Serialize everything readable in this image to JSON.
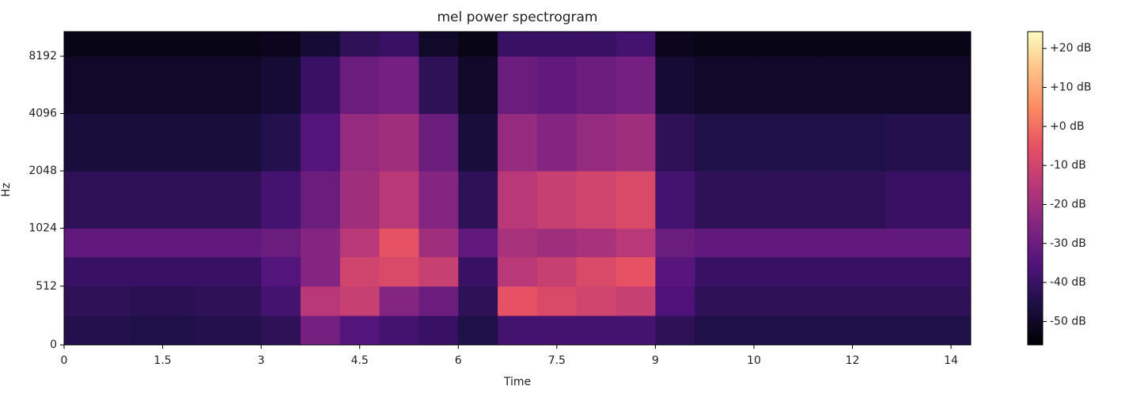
{
  "chart_data": {
    "type": "spectrogram",
    "title": "mel power spectrogram",
    "xlabel": "Time",
    "ylabel": "Hz",
    "xlim": [
      0,
      13.8
    ],
    "xticks": [
      0,
      1.5,
      3,
      4.5,
      6,
      7.5,
      9,
      {
        "value": 10.5,
        "label": "10"
      },
      12,
      {
        "value": 13.5,
        "label": "14"
      }
    ],
    "yscale": "symlog",
    "linthresh": 1000,
    "ylim": [
      0,
      11025
    ],
    "yticks": [
      0,
      512,
      1024,
      2048,
      4096,
      8192
    ],
    "x": [
      0,
      1,
      2,
      3,
      3.6,
      4.2,
      4.8,
      5.4,
      6,
      6.6,
      7.2,
      7.8,
      8.4,
      9,
      9.6,
      10.5,
      11.5,
      12.5,
      13.8
    ],
    "y": [
      0,
      256,
      512,
      768,
      1024,
      2048,
      4096,
      8192,
      11025
    ],
    "values": [
      [
        -44,
        -45,
        -44,
        -42,
        -28,
        -35,
        -38,
        -40,
        -45,
        -38,
        -38,
        -38,
        -38,
        -42,
        -45,
        -45,
        -45,
        -45
      ],
      [
        -42,
        -43,
        -42,
        -38,
        -15,
        -12,
        -25,
        -30,
        -42,
        -5,
        -8,
        -10,
        -12,
        -36,
        -42,
        -42,
        -42,
        -42
      ],
      [
        -40,
        -40,
        -40,
        -35,
        -25,
        -10,
        -8,
        -12,
        -40,
        -15,
        -12,
        -8,
        -5,
        -34,
        -40,
        -40,
        -40,
        -40
      ],
      [
        -32,
        -32,
        -32,
        -30,
        -25,
        -15,
        -5,
        -20,
        -32,
        -18,
        -20,
        -18,
        -15,
        -30,
        -32,
        -32,
        -32,
        -32
      ],
      [
        -42,
        -42,
        -42,
        -38,
        -30,
        -20,
        -15,
        -25,
        -42,
        -15,
        -12,
        -10,
        -8,
        -38,
        -42,
        -42,
        -42,
        -40
      ],
      [
        -47,
        -47,
        -47,
        -44,
        -35,
        -22,
        -20,
        -30,
        -47,
        -22,
        -25,
        -22,
        -20,
        -42,
        -45,
        -45,
        -45,
        -44
      ],
      [
        -50,
        -50,
        -50,
        -48,
        -40,
        -30,
        -28,
        -42,
        -50,
        -30,
        -32,
        -30,
        -28,
        -48,
        -50,
        -50,
        -50,
        -50
      ],
      [
        -53,
        -53,
        -53,
        -52,
        -48,
        -42,
        -40,
        -50,
        -53,
        -40,
        -40,
        -40,
        -38,
        -52,
        -53,
        -53,
        -53,
        -53
      ]
    ],
    "colormap": "magma",
    "clim": [
      -56,
      24.3
    ],
    "cticks": [
      {
        "value": 20,
        "label": "+20 dB"
      },
      {
        "value": 10,
        "label": "+10 dB"
      },
      {
        "value": 0,
        "label": "+0 dB"
      },
      {
        "value": -10,
        "label": "-10 dB"
      },
      {
        "value": -20,
        "label": "-20 dB"
      },
      {
        "value": -30,
        "label": "-30 dB"
      },
      {
        "value": -40,
        "label": "-40 dB"
      },
      {
        "value": -50,
        "label": "-50 dB"
      }
    ]
  }
}
